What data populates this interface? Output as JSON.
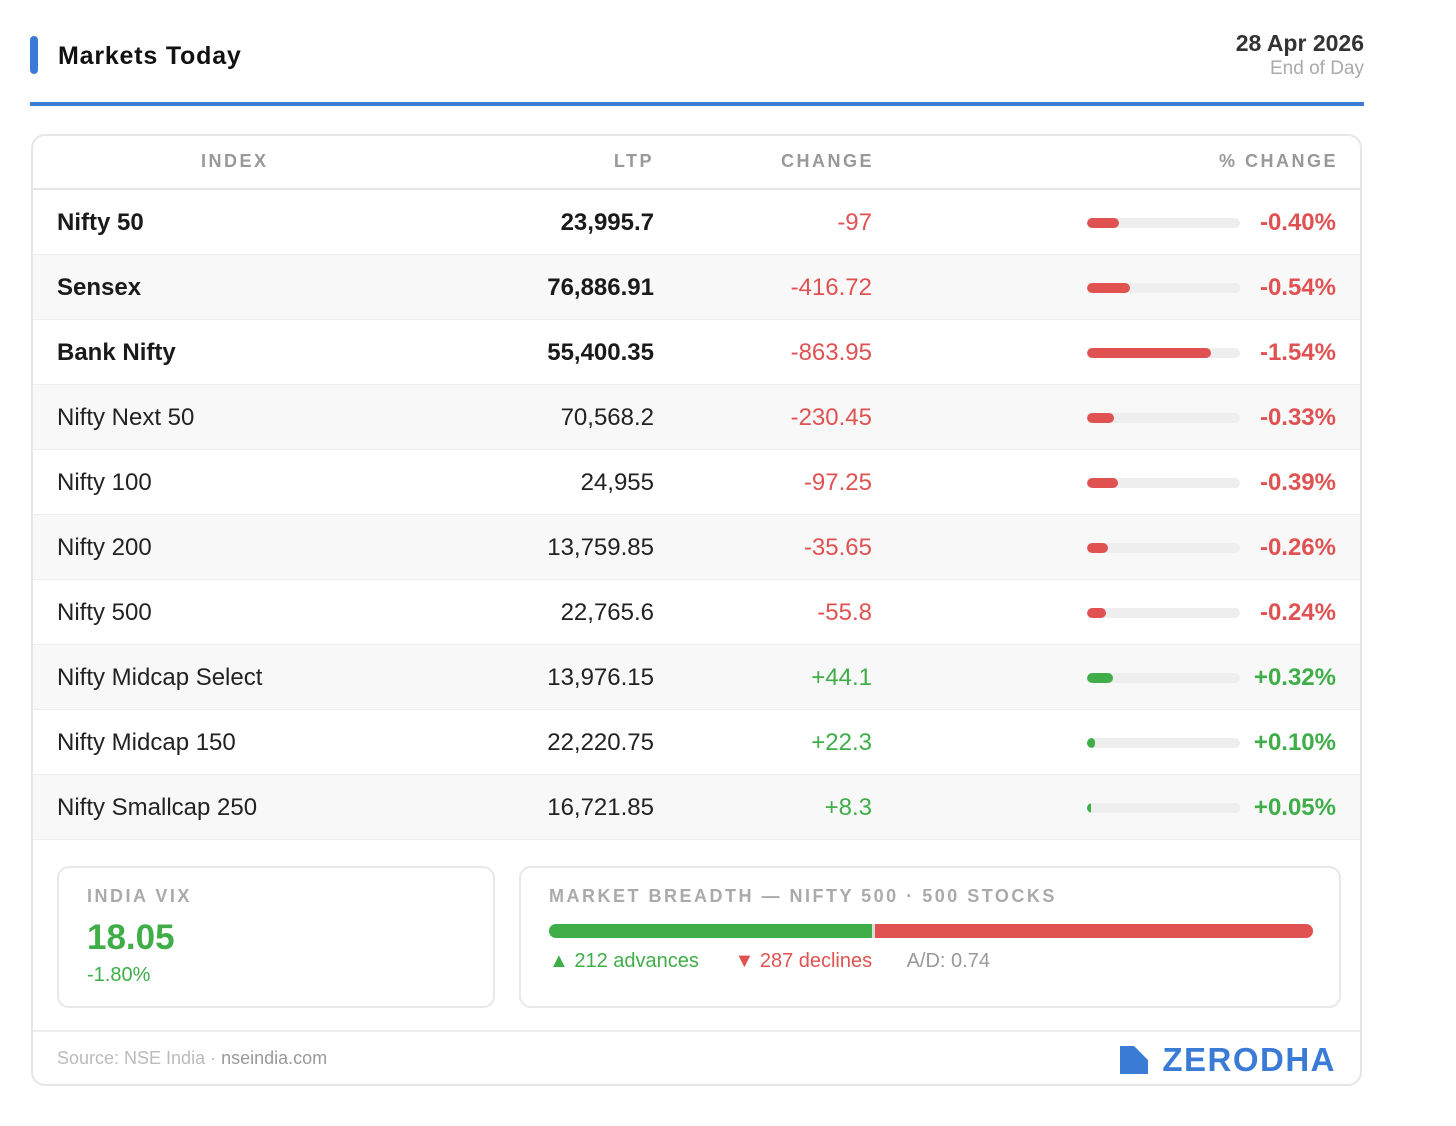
{
  "header": {
    "title": "Markets Today",
    "date": "28 Apr 2026",
    "date_sub": "End of Day"
  },
  "colors": {
    "accent": "#3a7bd5",
    "negative": "#e05252",
    "positive": "#3fae49",
    "brand": "#3a7bd5"
  },
  "table": {
    "headers": {
      "index": "INDEX",
      "ltp": "LTP",
      "change": "CHANGE",
      "pct": "% CHANGE"
    },
    "bar_scale_pct": 1.9,
    "rows": [
      {
        "name": "Nifty 50",
        "ltp": "23,995.7",
        "change": "-97",
        "pct": "-0.40%",
        "pct_value": -0.4,
        "major": true
      },
      {
        "name": "Sensex",
        "ltp": "76,886.91",
        "change": "-416.72",
        "pct": "-0.54%",
        "pct_value": -0.54,
        "major": true
      },
      {
        "name": "Bank Nifty",
        "ltp": "55,400.35",
        "change": "-863.95",
        "pct": "-1.54%",
        "pct_value": -1.54,
        "major": true
      },
      {
        "name": "Nifty Next 50",
        "ltp": "70,568.2",
        "change": "-230.45",
        "pct": "-0.33%",
        "pct_value": -0.33,
        "major": false
      },
      {
        "name": "Nifty 100",
        "ltp": "24,955",
        "change": "-97.25",
        "pct": "-0.39%",
        "pct_value": -0.39,
        "major": false
      },
      {
        "name": "Nifty 200",
        "ltp": "13,759.85",
        "change": "-35.65",
        "pct": "-0.26%",
        "pct_value": -0.26,
        "major": false
      },
      {
        "name": "Nifty 500",
        "ltp": "22,765.6",
        "change": "-55.8",
        "pct": "-0.24%",
        "pct_value": -0.24,
        "major": false
      },
      {
        "name": "Nifty Midcap Select",
        "ltp": "13,976.15",
        "change": "+44.1",
        "pct": "+0.32%",
        "pct_value": 0.32,
        "major": false
      },
      {
        "name": "Nifty Midcap 150",
        "ltp": "22,220.75",
        "change": "+22.3",
        "pct": "+0.10%",
        "pct_value": 0.1,
        "major": false
      },
      {
        "name": "Nifty Smallcap 250",
        "ltp": "16,721.85",
        "change": "+8.3",
        "pct": "+0.05%",
        "pct_value": 0.05,
        "major": false
      }
    ]
  },
  "vix": {
    "label": "INDIA VIX",
    "value": "18.05",
    "change": "-1.80%"
  },
  "breadth": {
    "label": "MARKET BREADTH — NIFTY 500 · 500 STOCKS",
    "advances": 212,
    "declines": 287,
    "unchanged": 1,
    "advances_text": "▲ 212 advances",
    "declines_text": "▼ 287 declines",
    "ratio_text": "A/D: 0.74"
  },
  "footer": {
    "source_prefix": "Source: NSE India · ",
    "source_link": "nseindia.com",
    "brand_text": "ZERODHA",
    "brand_icon": "zerodha-logo-icon"
  }
}
